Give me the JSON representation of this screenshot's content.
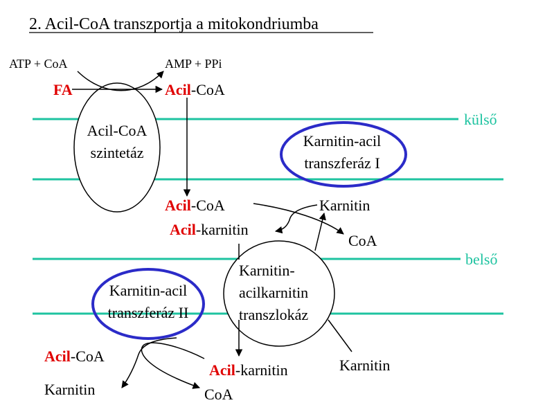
{
  "title": "2. Acil-CoA transzportja a mitokondriumba",
  "colors": {
    "membrane": "#1ec3a0",
    "highlight": "#e00000",
    "enzyme_outline": "#2b2bc8"
  },
  "labels": {
    "atp_coa": "ATP + CoA",
    "amp_ppi": "AMP + PPi",
    "fa": "FA",
    "acil": "Acil",
    "coa_suffix": "-CoA",
    "karnitin_suffix": "-karnitin",
    "karnitin": "Karnitin",
    "coa": "CoA",
    "kulso": "külső",
    "belso": "belső"
  },
  "enzymes": {
    "synthetase": [
      "Acil-CoA",
      "szintetáz"
    ],
    "cat1": [
      "Karnitin-acil",
      "transzferáz I"
    ],
    "translocase": [
      "Karnitin-",
      "acilkarnitin",
      "transzlokáz"
    ],
    "cat2": [
      "Karnitin-acil",
      "transzferáz II"
    ]
  }
}
